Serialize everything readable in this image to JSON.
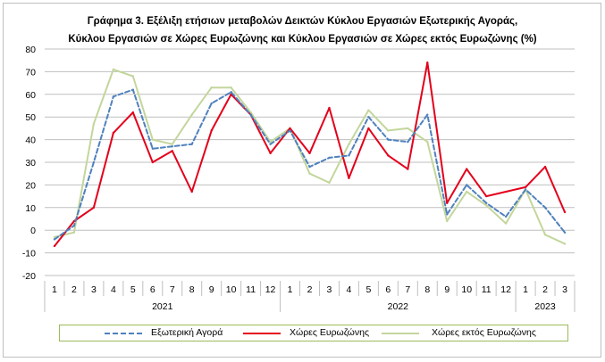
{
  "title_line1": "Γράφημα 3. Εξέλιξη  ετήσιων μεταβολών Δεικτών Κύκλου Εργασιών Εξωτερικής Αγοράς,",
  "title_line2": "Κύκλου Εργασιών σε Χώρες Ευρωζώνης και Κύκλου Εργασιών σε Χώρες εκτός Ευρωζώνης  (%)",
  "chart_data": {
    "type": "line",
    "title": "Γράφημα 3. Εξέλιξη  ετήσιων μεταβολών Δεικτών Κύκλου Εργασιών Εξωτερικής Αγοράς, Κύκλου Εργασιών σε Χώρες Ευρωζώνης και Κύκλου Εργασιών σε Χώρες εκτός Ευρωζώνης  (%)",
    "categories": [
      "1",
      "2",
      "3",
      "4",
      "5",
      "6",
      "7",
      "8",
      "9",
      "10",
      "11",
      "12",
      "1",
      "2",
      "3",
      "4",
      "5",
      "6",
      "7",
      "8",
      "9",
      "10",
      "11",
      "12",
      "1",
      "2",
      "3"
    ],
    "years": [
      {
        "label": "2021",
        "start": 0,
        "end": 11
      },
      {
        "label": "2022",
        "start": 12,
        "end": 23
      },
      {
        "label": "2023",
        "start": 24,
        "end": 26
      }
    ],
    "ylim": [
      -20,
      80
    ],
    "yticks": [
      -20,
      -10,
      0,
      10,
      20,
      30,
      40,
      50,
      60,
      70,
      80
    ],
    "grid": true,
    "legend_position": "bottom",
    "series": [
      {
        "name": "Εξωτερική Αγορά",
        "color": "#4f81bd",
        "dash": "dashed",
        "values": [
          -4,
          2,
          30,
          59,
          62,
          36,
          37,
          38,
          56,
          61,
          51,
          38,
          44,
          28,
          32,
          33,
          50,
          40,
          39,
          51,
          7,
          20,
          12,
          6,
          18,
          10,
          -1
        ]
      },
      {
        "name": "Χώρες Ευρωζώνης",
        "color": "#e3001b",
        "dash": "solid",
        "values": [
          -7,
          4,
          10,
          43,
          52,
          30,
          35,
          17,
          44,
          60,
          51,
          34,
          45,
          34,
          54,
          23,
          45,
          33,
          27,
          74,
          12,
          27,
          15,
          17,
          19,
          28,
          8
        ]
      },
      {
        "name": "Χώρες εκτός Ευρωζώνης",
        "color": "#c3d69b",
        "dash": "solid",
        "values": [
          -3,
          -1,
          47,
          71,
          68,
          40,
          38,
          51,
          63,
          63,
          52,
          39,
          45,
          25,
          21,
          38,
          53,
          44,
          45,
          39,
          4,
          17,
          11,
          3,
          18,
          -2,
          -6
        ]
      }
    ]
  }
}
